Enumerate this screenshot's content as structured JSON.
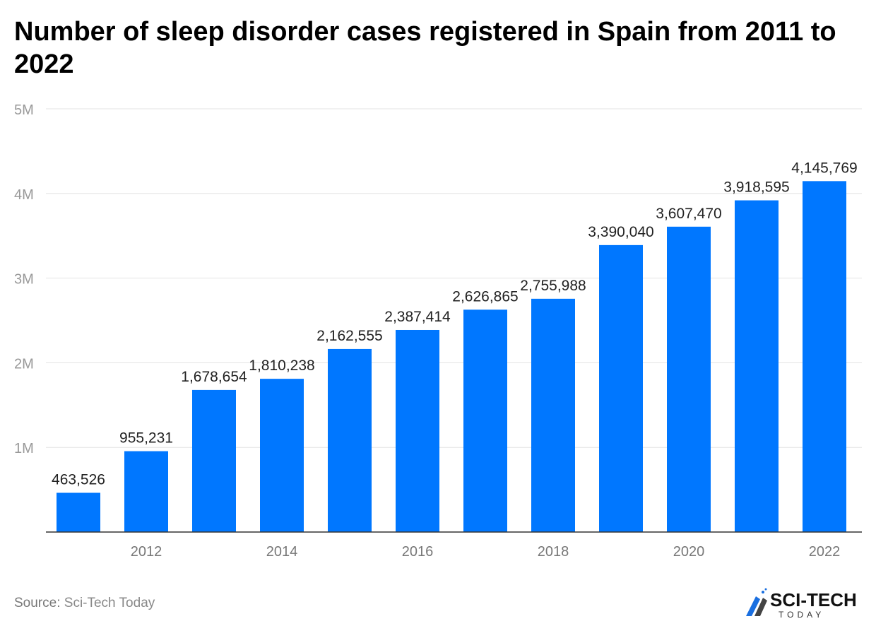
{
  "chart_data": {
    "type": "bar",
    "title": "Number of sleep disorder cases registered in Spain from 2011 to 2022",
    "categories": [
      "2011",
      "2012",
      "2013",
      "2014",
      "2015",
      "2016",
      "2017",
      "2018",
      "2019",
      "2020",
      "2021",
      "2022"
    ],
    "x_tick_labels": [
      "2012",
      "2014",
      "2016",
      "2018",
      "2020",
      "2022"
    ],
    "values": [
      463526,
      955231,
      1678654,
      1810238,
      2162555,
      2387414,
      2626865,
      2755988,
      3390040,
      3607470,
      3918595,
      4145769
    ],
    "data_labels": [
      "463,526",
      "955,231",
      "1,678,654",
      "1,810,238",
      "2,162,555",
      "2,387,414",
      "2,626,865",
      "2,755,988",
      "3,390,040",
      "3,607,470",
      "3,918,595",
      "4,145,769"
    ],
    "y_ticks": [
      1000000,
      2000000,
      3000000,
      4000000,
      5000000
    ],
    "y_tick_labels": [
      "1M",
      "2M",
      "3M",
      "4M",
      "5M"
    ],
    "ylim": [
      0,
      5000000
    ],
    "grid": true,
    "bar_color": "#0077ff",
    "xlabel": "",
    "ylabel": ""
  },
  "source": {
    "label": "Source:",
    "name": "Sci-Tech Today"
  },
  "logo": {
    "text": "SCI-TECH",
    "subtext": "TODAY"
  }
}
